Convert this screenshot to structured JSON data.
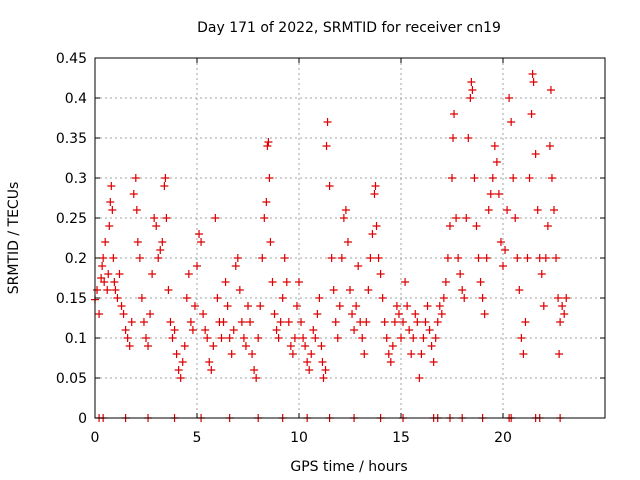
{
  "chart_data": {
    "type": "scatter",
    "title": "Day 171 of 2022, SRMTID for receiver cn19",
    "xlabel": "GPS time / hours",
    "ylabel": "SRMTID / TECUs",
    "xlim": [
      0,
      25
    ],
    "ylim": [
      0,
      0.45
    ],
    "xticks": [
      0,
      5,
      10,
      15,
      20
    ],
    "yticks": [
      0,
      0.05,
      0.1,
      0.15,
      0.2,
      0.25,
      0.3,
      0.35,
      0.4,
      0.45
    ],
    "xtick_labels": [
      "0",
      "5",
      "10",
      "15",
      "20"
    ],
    "ytick_labels": [
      "0",
      "0.05",
      "0.1",
      "0.15",
      "0.2",
      "0.25",
      "0.3",
      "0.35",
      "0.4",
      "0.45"
    ],
    "grid": true,
    "marker": "+",
    "color": "#dd0000",
    "series": [
      {
        "name": "SRMTID",
        "points": [
          [
            0.0,
            0.148
          ],
          [
            0.1,
            0.16
          ],
          [
            0.2,
            0.13
          ],
          [
            0.3,
            0.175
          ],
          [
            0.35,
            0.19
          ],
          [
            0.4,
            0.2
          ],
          [
            0.45,
            0.17
          ],
          [
            0.5,
            0.22
          ],
          [
            0.6,
            0.16
          ],
          [
            0.65,
            0.18
          ],
          [
            0.7,
            0.24
          ],
          [
            0.75,
            0.27
          ],
          [
            0.8,
            0.29
          ],
          [
            0.85,
            0.26
          ],
          [
            0.9,
            0.2
          ],
          [
            0.95,
            0.17
          ],
          [
            1.0,
            0.16
          ],
          [
            1.1,
            0.15
          ],
          [
            1.2,
            0.18
          ],
          [
            1.3,
            0.14
          ],
          [
            1.4,
            0.13
          ],
          [
            1.5,
            0.11
          ],
          [
            1.6,
            0.1
          ],
          [
            1.7,
            0.09
          ],
          [
            1.8,
            0.12
          ],
          [
            1.9,
            0.28
          ],
          [
            2.0,
            0.3
          ],
          [
            2.05,
            0.26
          ],
          [
            2.1,
            0.22
          ],
          [
            2.2,
            0.2
          ],
          [
            2.3,
            0.15
          ],
          [
            2.4,
            0.12
          ],
          [
            2.5,
            0.1
          ],
          [
            2.6,
            0.09
          ],
          [
            2.7,
            0.13
          ],
          [
            2.8,
            0.18
          ],
          [
            2.9,
            0.25
          ],
          [
            3.0,
            0.24
          ],
          [
            3.1,
            0.2
          ],
          [
            3.2,
            0.21
          ],
          [
            3.3,
            0.22
          ],
          [
            3.4,
            0.29
          ],
          [
            3.45,
            0.3
          ],
          [
            3.5,
            0.25
          ],
          [
            3.6,
            0.16
          ],
          [
            3.7,
            0.12
          ],
          [
            3.8,
            0.1
          ],
          [
            3.9,
            0.11
          ],
          [
            4.0,
            0.08
          ],
          [
            4.1,
            0.06
          ],
          [
            4.2,
            0.05
          ],
          [
            4.3,
            0.07
          ],
          [
            4.4,
            0.09
          ],
          [
            4.5,
            0.15
          ],
          [
            4.6,
            0.18
          ],
          [
            4.7,
            0.12
          ],
          [
            4.8,
            0.11
          ],
          [
            4.9,
            0.14
          ],
          [
            5.0,
            0.19
          ],
          [
            5.1,
            0.23
          ],
          [
            5.2,
            0.22
          ],
          [
            5.3,
            0.13
          ],
          [
            5.4,
            0.11
          ],
          [
            5.5,
            0.1
          ],
          [
            5.6,
            0.07
          ],
          [
            5.7,
            0.06
          ],
          [
            5.8,
            0.09
          ],
          [
            5.9,
            0.25
          ],
          [
            6.0,
            0.15
          ],
          [
            6.1,
            0.12
          ],
          [
            6.2,
            0.1
          ],
          [
            6.3,
            0.12
          ],
          [
            6.4,
            0.17
          ],
          [
            6.5,
            0.14
          ],
          [
            6.6,
            0.1
          ],
          [
            6.7,
            0.08
          ],
          [
            6.8,
            0.11
          ],
          [
            6.9,
            0.19
          ],
          [
            7.0,
            0.2
          ],
          [
            7.1,
            0.16
          ],
          [
            7.2,
            0.12
          ],
          [
            7.3,
            0.1
          ],
          [
            7.4,
            0.09
          ],
          [
            7.5,
            0.14
          ],
          [
            7.6,
            0.12
          ],
          [
            7.7,
            0.08
          ],
          [
            7.8,
            0.06
          ],
          [
            7.9,
            0.05
          ],
          [
            8.0,
            0.1
          ],
          [
            8.1,
            0.14
          ],
          [
            8.2,
            0.2
          ],
          [
            8.3,
            0.25
          ],
          [
            8.4,
            0.27
          ],
          [
            8.45,
            0.34
          ],
          [
            8.5,
            0.345
          ],
          [
            8.55,
            0.3
          ],
          [
            8.6,
            0.22
          ],
          [
            8.7,
            0.17
          ],
          [
            8.8,
            0.13
          ],
          [
            8.9,
            0.11
          ],
          [
            9.0,
            0.1
          ],
          [
            9.1,
            0.12
          ],
          [
            9.2,
            0.15
          ],
          [
            9.3,
            0.2
          ],
          [
            9.4,
            0.17
          ],
          [
            9.5,
            0.12
          ],
          [
            9.6,
            0.09
          ],
          [
            9.7,
            0.08
          ],
          [
            9.8,
            0.1
          ],
          [
            9.9,
            0.14
          ],
          [
            10.0,
            0.17
          ],
          [
            10.1,
            0.12
          ],
          [
            10.2,
            0.1
          ],
          [
            10.3,
            0.09
          ],
          [
            10.4,
            0.07
          ],
          [
            10.5,
            0.06
          ],
          [
            10.6,
            0.08
          ],
          [
            10.7,
            0.11
          ],
          [
            10.8,
            0.1
          ],
          [
            10.9,
            0.13
          ],
          [
            11.0,
            0.15
          ],
          [
            11.1,
            0.09
          ],
          [
            11.15,
            0.07
          ],
          [
            11.2,
            0.05
          ],
          [
            11.3,
            0.06
          ],
          [
            11.35,
            0.34
          ],
          [
            11.4,
            0.37
          ],
          [
            11.5,
            0.29
          ],
          [
            11.6,
            0.2
          ],
          [
            11.7,
            0.16
          ],
          [
            11.8,
            0.12
          ],
          [
            11.9,
            0.1
          ],
          [
            12.0,
            0.14
          ],
          [
            12.1,
            0.2
          ],
          [
            12.2,
            0.25
          ],
          [
            12.3,
            0.26
          ],
          [
            12.4,
            0.22
          ],
          [
            12.5,
            0.16
          ],
          [
            12.6,
            0.13
          ],
          [
            12.7,
            0.11
          ],
          [
            12.8,
            0.14
          ],
          [
            12.9,
            0.19
          ],
          [
            13.0,
            0.12
          ],
          [
            13.1,
            0.1
          ],
          [
            13.2,
            0.08
          ],
          [
            13.3,
            0.12
          ],
          [
            13.4,
            0.16
          ],
          [
            13.5,
            0.2
          ],
          [
            13.6,
            0.23
          ],
          [
            13.7,
            0.28
          ],
          [
            13.75,
            0.29
          ],
          [
            13.8,
            0.24
          ],
          [
            13.9,
            0.2
          ],
          [
            14.0,
            0.18
          ],
          [
            14.1,
            0.15
          ],
          [
            14.2,
            0.12
          ],
          [
            14.3,
            0.1
          ],
          [
            14.4,
            0.08
          ],
          [
            14.5,
            0.07
          ],
          [
            14.6,
            0.09
          ],
          [
            14.7,
            0.12
          ],
          [
            14.8,
            0.14
          ],
          [
            14.9,
            0.13
          ],
          [
            15.0,
            0.1
          ],
          [
            15.1,
            0.12
          ],
          [
            15.2,
            0.17
          ],
          [
            15.3,
            0.14
          ],
          [
            15.4,
            0.11
          ],
          [
            15.5,
            0.08
          ],
          [
            15.6,
            0.1
          ],
          [
            15.7,
            0.13
          ],
          [
            15.8,
            0.12
          ],
          [
            15.9,
            0.05
          ],
          [
            16.0,
            0.08
          ],
          [
            16.1,
            0.1
          ],
          [
            16.2,
            0.12
          ],
          [
            16.3,
            0.14
          ],
          [
            16.4,
            0.11
          ],
          [
            16.5,
            0.09
          ],
          [
            16.6,
            0.07
          ],
          [
            16.7,
            0.1
          ],
          [
            16.8,
            0.12
          ],
          [
            16.9,
            0.14
          ],
          [
            17.0,
            0.13
          ],
          [
            17.1,
            0.15
          ],
          [
            17.2,
            0.17
          ],
          [
            17.3,
            0.2
          ],
          [
            17.4,
            0.24
          ],
          [
            17.5,
            0.3
          ],
          [
            17.55,
            0.35
          ],
          [
            17.6,
            0.38
          ],
          [
            17.7,
            0.25
          ],
          [
            17.8,
            0.2
          ],
          [
            17.9,
            0.18
          ],
          [
            18.0,
            0.16
          ],
          [
            18.1,
            0.15
          ],
          [
            18.2,
            0.25
          ],
          [
            18.3,
            0.35
          ],
          [
            18.4,
            0.4
          ],
          [
            18.45,
            0.42
          ],
          [
            18.5,
            0.41
          ],
          [
            18.6,
            0.3
          ],
          [
            18.7,
            0.24
          ],
          [
            18.8,
            0.2
          ],
          [
            18.9,
            0.17
          ],
          [
            19.0,
            0.15
          ],
          [
            19.1,
            0.13
          ],
          [
            19.2,
            0.2
          ],
          [
            19.3,
            0.26
          ],
          [
            19.4,
            0.28
          ],
          [
            19.5,
            0.3
          ],
          [
            19.6,
            0.34
          ],
          [
            19.7,
            0.32
          ],
          [
            19.8,
            0.28
          ],
          [
            19.9,
            0.22
          ],
          [
            20.0,
            0.19
          ],
          [
            20.1,
            0.21
          ],
          [
            20.2,
            0.26
          ],
          [
            20.3,
            0.4
          ],
          [
            20.4,
            0.37
          ],
          [
            20.5,
            0.3
          ],
          [
            20.6,
            0.25
          ],
          [
            20.7,
            0.2
          ],
          [
            20.8,
            0.16
          ],
          [
            20.9,
            0.1
          ],
          [
            21.0,
            0.08
          ],
          [
            21.1,
            0.12
          ],
          [
            21.2,
            0.2
          ],
          [
            21.3,
            0.3
          ],
          [
            21.4,
            0.38
          ],
          [
            21.45,
            0.43
          ],
          [
            21.5,
            0.42
          ],
          [
            21.6,
            0.33
          ],
          [
            21.7,
            0.26
          ],
          [
            21.8,
            0.2
          ],
          [
            21.9,
            0.18
          ],
          [
            22.0,
            0.14
          ],
          [
            22.1,
            0.2
          ],
          [
            22.2,
            0.24
          ],
          [
            22.3,
            0.34
          ],
          [
            22.35,
            0.41
          ],
          [
            22.4,
            0.3
          ],
          [
            22.5,
            0.26
          ],
          [
            22.6,
            0.2
          ],
          [
            22.7,
            0.15
          ],
          [
            22.75,
            0.08
          ],
          [
            22.8,
            0.12
          ],
          [
            22.9,
            0.14
          ],
          [
            23.0,
            0.13
          ],
          [
            23.1,
            0.15
          ],
          [
            0.2,
            0.0
          ],
          [
            0.4,
            0.0
          ],
          [
            1.5,
            0.0
          ],
          [
            2.6,
            0.0
          ],
          [
            3.9,
            0.0
          ],
          [
            5.2,
            0.0
          ],
          [
            6.6,
            0.0
          ],
          [
            8.0,
            0.0
          ],
          [
            9.2,
            0.0
          ],
          [
            10.4,
            0.0
          ],
          [
            11.5,
            0.0
          ],
          [
            12.7,
            0.0
          ],
          [
            14.0,
            0.0
          ],
          [
            15.1,
            0.0
          ],
          [
            16.6,
            0.0
          ],
          [
            16.8,
            0.0
          ],
          [
            17.4,
            0.0
          ],
          [
            18.0,
            0.0
          ],
          [
            19.0,
            0.0
          ],
          [
            20.3,
            0.0
          ],
          [
            20.4,
            0.0
          ],
          [
            21.6,
            0.0
          ],
          [
            21.8,
            0.0
          ],
          [
            22.8,
            0.0
          ]
        ]
      }
    ]
  }
}
